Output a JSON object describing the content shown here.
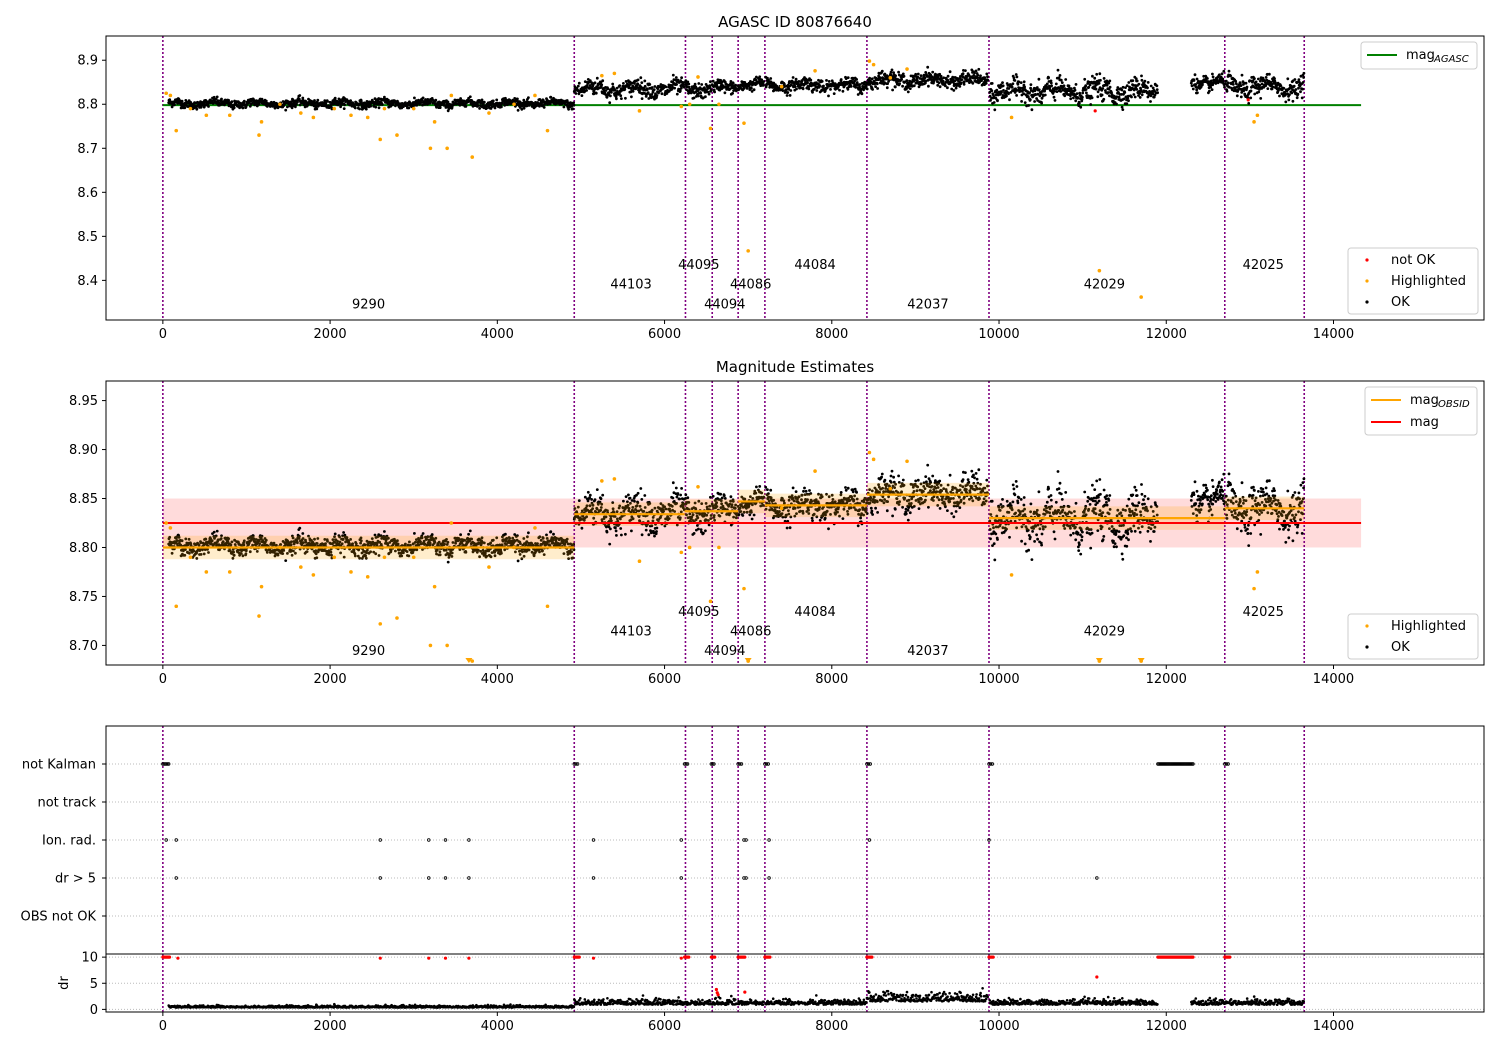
{
  "chart_data": [
    {
      "type": "scatter",
      "title": "AGASC ID 80876640",
      "xlim": [
        -680,
        15800
      ],
      "ylim": [
        8.31,
        8.955
      ],
      "xticks": [
        0,
        2000,
        4000,
        6000,
        8000,
        10000,
        12000,
        14000
      ],
      "yticks": [
        8.4,
        8.5,
        8.6,
        8.7,
        8.8,
        8.9
      ],
      "mag_agasc": 8.798,
      "mag_agasc_range": [
        0,
        14330
      ],
      "legend_top": {
        "label": "mag",
        "sub": "AGASC",
        "color": "#008000"
      },
      "legend_bottom": [
        {
          "label": "not OK",
          "color": "#ff0000"
        },
        {
          "label": "Highlighted",
          "color": "#ffa500"
        },
        {
          "label": "OK",
          "color": "#000000"
        }
      ],
      "obsid_labels": [
        {
          "text": "9290",
          "x": 2460,
          "y": 8.336
        },
        {
          "text": "44103",
          "x": 5600,
          "y": 8.381
        },
        {
          "text": "44095",
          "x": 6410,
          "y": 8.426
        },
        {
          "text": "44094",
          "x": 6720,
          "y": 8.336
        },
        {
          "text": "44086",
          "x": 7030,
          "y": 8.381
        },
        {
          "text": "44084",
          "x": 7800,
          "y": 8.426
        },
        {
          "text": "42037",
          "x": 9150,
          "y": 8.336
        },
        {
          "text": "42029",
          "x": 11260,
          "y": 8.381
        },
        {
          "text": "42025",
          "x": 13160,
          "y": 8.426
        }
      ],
      "highlighted": [
        [
          40,
          8.825
        ],
        [
          90,
          8.82
        ],
        [
          160,
          8.74
        ],
        [
          330,
          8.79
        ],
        [
          520,
          8.775
        ],
        [
          800,
          8.775
        ],
        [
          1150,
          8.73
        ],
        [
          1180,
          8.76
        ],
        [
          1400,
          8.8
        ],
        [
          1650,
          8.78
        ],
        [
          1800,
          8.77
        ],
        [
          2050,
          8.79
        ],
        [
          2250,
          8.775
        ],
        [
          2450,
          8.77
        ],
        [
          2600,
          8.72
        ],
        [
          2650,
          8.79
        ],
        [
          2800,
          8.73
        ],
        [
          3000,
          8.79
        ],
        [
          3200,
          8.7
        ],
        [
          3250,
          8.76
        ],
        [
          3400,
          8.7
        ],
        [
          3450,
          8.82
        ],
        [
          3700,
          8.68
        ],
        [
          3900,
          8.78
        ],
        [
          4200,
          8.8
        ],
        [
          4450,
          8.82
        ],
        [
          4600,
          8.74
        ],
        [
          5250,
          8.865
        ],
        [
          5400,
          8.87
        ],
        [
          5700,
          8.785
        ],
        [
          6200,
          8.795
        ],
        [
          6300,
          8.8
        ],
        [
          6400,
          8.862
        ],
        [
          6550,
          8.745
        ],
        [
          6650,
          8.8
        ],
        [
          6950,
          8.757
        ],
        [
          7000,
          8.467
        ],
        [
          7400,
          8.84
        ],
        [
          7800,
          8.876
        ],
        [
          8450,
          8.898
        ],
        [
          8500,
          8.89
        ],
        [
          8700,
          8.86
        ],
        [
          8900,
          8.88
        ],
        [
          10150,
          8.77
        ],
        [
          11200,
          8.422
        ],
        [
          11700,
          8.362
        ],
        [
          13050,
          8.76
        ],
        [
          13090,
          8.775
        ]
      ],
      "not_ok": [
        [
          11150,
          8.785
        ],
        [
          12980,
          8.81
        ]
      ]
    },
    {
      "type": "scatter",
      "title": "Magnitude Estimates",
      "xlim": [
        -680,
        15800
      ],
      "ylim": [
        8.68,
        8.97
      ],
      "xticks": [
        0,
        2000,
        4000,
        6000,
        8000,
        10000,
        12000,
        14000
      ],
      "yticks": [
        8.7,
        8.75,
        8.8,
        8.85,
        8.9,
        8.95
      ],
      "mag": 8.825,
      "mag_band": [
        8.8,
        8.85
      ],
      "mag_range": [
        0,
        14330
      ],
      "legend_top": [
        {
          "label": "mag",
          "sub": "OBSID",
          "color": "#ffa500"
        },
        {
          "label": "mag",
          "sub": "",
          "color": "#ff0000"
        }
      ],
      "legend_bottom": [
        {
          "label": "Highlighted",
          "color": "#ffa500"
        },
        {
          "label": "OK",
          "color": "#000000"
        }
      ],
      "obs_segments": [
        {
          "x0": 0,
          "x1": 4920,
          "mag": 8.8
        },
        {
          "x0": 4920,
          "x1": 6240,
          "mag": 8.834
        },
        {
          "x0": 6240,
          "x1": 6560,
          "mag": 8.837
        },
        {
          "x0": 6560,
          "x1": 6880,
          "mag": 8.837
        },
        {
          "x0": 6880,
          "x1": 7200,
          "mag": 8.847
        },
        {
          "x0": 7200,
          "x1": 8420,
          "mag": 8.843
        },
        {
          "x0": 8420,
          "x1": 9880,
          "mag": 8.854
        },
        {
          "x0": 9880,
          "x1": 12700,
          "mag": 8.83
        },
        {
          "x0": 12700,
          "x1": 13650,
          "mag": 8.84
        }
      ],
      "obsid_labels": [
        {
          "text": "9290",
          "x": 2460,
          "y": 8.69
        },
        {
          "text": "44103",
          "x": 5600,
          "y": 8.71
        },
        {
          "text": "44095",
          "x": 6410,
          "y": 8.73
        },
        {
          "text": "44094",
          "x": 6720,
          "y": 8.69
        },
        {
          "text": "44086",
          "x": 7030,
          "y": 8.71
        },
        {
          "text": "44084",
          "x": 7800,
          "y": 8.73
        },
        {
          "text": "42037",
          "x": 9150,
          "y": 8.69
        },
        {
          "text": "42029",
          "x": 11260,
          "y": 8.71
        },
        {
          "text": "42025",
          "x": 13160,
          "y": 8.73
        }
      ],
      "highlighted": [
        [
          40,
          8.825
        ],
        [
          90,
          8.82
        ],
        [
          160,
          8.74
        ],
        [
          330,
          8.79
        ],
        [
          520,
          8.775
        ],
        [
          800,
          8.775
        ],
        [
          1150,
          8.73
        ],
        [
          1180,
          8.76
        ],
        [
          1400,
          8.8
        ],
        [
          1650,
          8.78
        ],
        [
          1800,
          8.772
        ],
        [
          2050,
          8.79
        ],
        [
          2250,
          8.775
        ],
        [
          2450,
          8.77
        ],
        [
          2600,
          8.722
        ],
        [
          2650,
          8.79
        ],
        [
          2800,
          8.728
        ],
        [
          3000,
          8.79
        ],
        [
          3200,
          8.7
        ],
        [
          3250,
          8.76
        ],
        [
          3400,
          8.7
        ],
        [
          3450,
          8.825
        ],
        [
          3700,
          8.684
        ],
        [
          3900,
          8.78
        ],
        [
          4200,
          8.8
        ],
        [
          4450,
          8.82
        ],
        [
          4600,
          8.74
        ],
        [
          5250,
          8.868
        ],
        [
          5400,
          8.87
        ],
        [
          5700,
          8.786
        ],
        [
          6200,
          8.795
        ],
        [
          6300,
          8.8
        ],
        [
          6400,
          8.862
        ],
        [
          6550,
          8.745
        ],
        [
          6650,
          8.8
        ],
        [
          6950,
          8.758
        ],
        [
          7000,
          8.684
        ],
        [
          7400,
          8.84
        ],
        [
          7800,
          8.878
        ],
        [
          8450,
          8.897
        ],
        [
          8500,
          8.89
        ],
        [
          8700,
          8.86
        ],
        [
          8900,
          8.888
        ],
        [
          10150,
          8.772
        ],
        [
          11200,
          8.684
        ],
        [
          11700,
          8.684
        ],
        [
          13050,
          8.758
        ],
        [
          13090,
          8.775
        ]
      ],
      "offscale_markers": [
        3660,
        7000,
        11200,
        11700
      ]
    },
    {
      "type": "scatter",
      "title": "",
      "xlim": [
        -680,
        15800
      ],
      "flag_rows": [
        "not Kalman",
        "not track",
        "Ion. rad.",
        "dr > 5",
        "OBS not OK"
      ],
      "flag_points": {
        "not Kalman": [
          [
            0,
            70
          ],
          [
            4920,
            40
          ],
          [
            6240,
            35
          ],
          [
            6560,
            30
          ],
          [
            6880,
            40
          ],
          [
            7200,
            40
          ],
          [
            8420,
            40
          ],
          [
            9880,
            40
          ],
          [
            11900,
            420
          ],
          [
            12700,
            40
          ]
        ],
        "not track": [],
        "Ion. rad.": [
          [
            40,
            0
          ],
          [
            160,
            0
          ],
          [
            2600,
            0
          ],
          [
            3180,
            0
          ],
          [
            3380,
            0
          ],
          [
            3660,
            0
          ],
          [
            5150,
            0
          ],
          [
            6200,
            0
          ],
          [
            6950,
            25
          ],
          [
            7250,
            0
          ],
          [
            8450,
            0
          ],
          [
            9880,
            0
          ]
        ],
        "dr > 5": [
          [
            160,
            0
          ],
          [
            2600,
            0
          ],
          [
            3180,
            0
          ],
          [
            3380,
            0
          ],
          [
            3660,
            0
          ],
          [
            5150,
            0
          ],
          [
            6200,
            0
          ],
          [
            6950,
            25
          ],
          [
            7250,
            0
          ],
          [
            11170,
            0
          ]
        ],
        "OBS not OK": []
      },
      "dr_ylim": [
        -0.5,
        10.6
      ],
      "dr_yticks": [
        0,
        5,
        10
      ],
      "dr_ylabel": "dr",
      "dr_outliers": [
        [
          0,
          80,
          10
        ],
        [
          4920,
          60,
          10
        ],
        [
          6240,
          50,
          10
        ],
        [
          6560,
          40,
          10
        ],
        [
          6880,
          80,
          10
        ],
        [
          7200,
          60,
          10
        ],
        [
          8420,
          60,
          10
        ],
        [
          9880,
          50,
          10
        ],
        [
          11900,
          420,
          10
        ],
        [
          12700,
          60,
          10
        ],
        [
          180,
          0,
          9.8
        ],
        [
          2600,
          0,
          9.8
        ],
        [
          3180,
          0,
          9.8
        ],
        [
          3380,
          0,
          9.8
        ],
        [
          3660,
          0,
          9.8
        ],
        [
          5150,
          0,
          9.8
        ],
        [
          6200,
          0,
          9.8
        ],
        [
          6620,
          0,
          3.8
        ],
        [
          6630,
          0,
          3.2
        ],
        [
          6640,
          0,
          2.8
        ],
        [
          6960,
          0,
          3.3
        ],
        [
          11170,
          0,
          6.2
        ]
      ],
      "dr_gaps": [
        [
          11900,
          12300
        ]
      ]
    }
  ],
  "obs_boundaries": [
    0,
    4920,
    6250,
    6570,
    6880,
    7200,
    8420,
    9880,
    12700,
    13650
  ],
  "ok_segments": [
    {
      "x0": 70,
      "x1": 4920,
      "base": 8.802,
      "sigma": 0.0045
    },
    {
      "x0": 4920,
      "x1": 6240,
      "base": 8.835,
      "sigma": 0.009
    },
    {
      "x0": 6250,
      "x1": 6560,
      "base": 8.835,
      "sigma": 0.008
    },
    {
      "x0": 6570,
      "x1": 6870,
      "base": 8.838,
      "sigma": 0.007
    },
    {
      "x0": 6880,
      "x1": 7190,
      "base": 8.845,
      "sigma": 0.006
    },
    {
      "x0": 7210,
      "x1": 8420,
      "base": 8.843,
      "sigma": 0.007
    },
    {
      "x0": 8420,
      "x1": 9870,
      "base": 8.855,
      "sigma": 0.008
    },
    {
      "x0": 9890,
      "x1": 11900,
      "base": 8.83,
      "sigma": 0.012
    },
    {
      "x0": 12300,
      "x1": 12700,
      "base": 8.85,
      "sigma": 0.008
    },
    {
      "x0": 12710,
      "x1": 13650,
      "base": 8.84,
      "sigma": 0.011
    }
  ],
  "colors": {
    "boundary": "#800080",
    "ok": "#000000",
    "highlighted": "#ffa500",
    "not_ok": "#ff0000",
    "agasc": "#008000",
    "mag": "#ff0000",
    "band": "#ffcccc"
  }
}
